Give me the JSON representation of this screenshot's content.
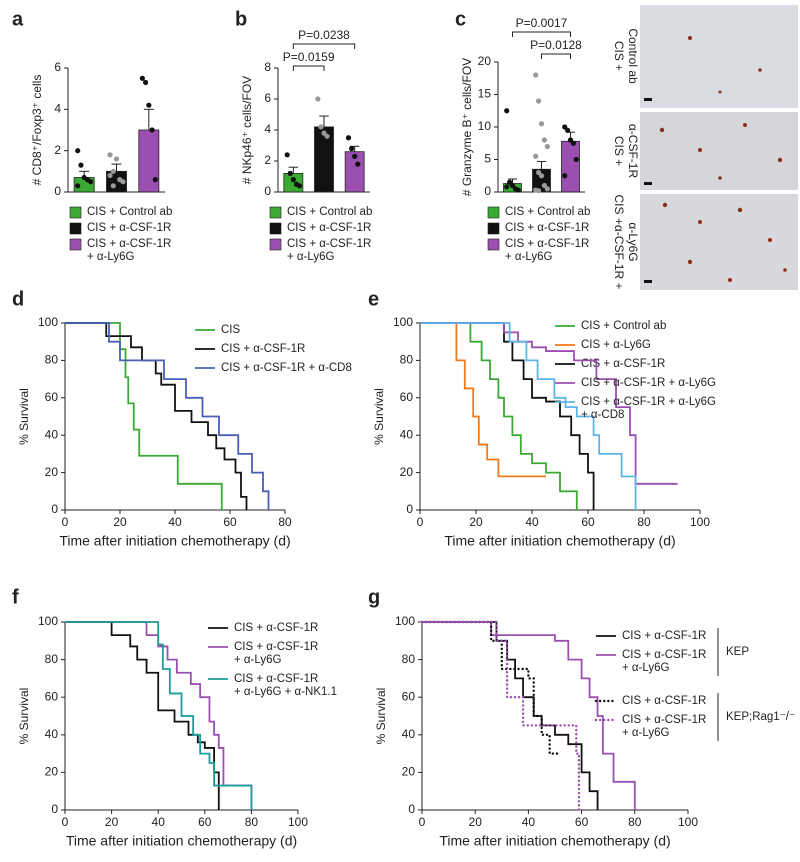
{
  "chart_data": [
    {
      "type": "bar",
      "panel": "a",
      "ylabel": "# CD8⁺/Foxp3⁺ cells",
      "ylim": [
        0,
        6
      ],
      "yticks": [
        0,
        2,
        4,
        6
      ],
      "series": [
        {
          "name": [
            "CIS + Control ab"
          ],
          "color": "#3aaa35",
          "point_color": "#111111",
          "values": [
            0.7
          ],
          "errors": [
            0.3
          ],
          "points": [
            2.0,
            1.3,
            0.7,
            0.6,
            0.5,
            0.3
          ]
        },
        {
          "name": [
            "CIS + α-CSF-1R"
          ],
          "color": "#111111",
          "point_color": "#999999",
          "values": [
            1.0
          ],
          "errors": [
            0.35
          ],
          "points": [
            1.8,
            1.0,
            1.6,
            0.6,
            0.5,
            0.8,
            0.3
          ]
        },
        {
          "name": [
            "CIS + α-CSF-1R",
            "+ α-Ly6G"
          ],
          "color": "#9b4fb0",
          "point_color": "#111111",
          "values": [
            3.0
          ],
          "errors": [
            1.0
          ],
          "points": [
            5.5,
            5.3,
            4.2,
            3.0,
            0.6
          ]
        }
      ],
      "comparisons": []
    },
    {
      "type": "bar",
      "panel": "b",
      "ylabel": "# NKp46⁺ cells/FOV",
      "ylim": [
        0,
        8
      ],
      "yticks": [
        0,
        2,
        4,
        6,
        8
      ],
      "series": [
        {
          "name": [
            "CIS + Control ab"
          ],
          "color": "#3aaa35",
          "point_color": "#111111",
          "values": [
            1.2
          ],
          "errors": [
            0.4
          ],
          "points": [
            2.4,
            1.2,
            0.8,
            0.5,
            0.4
          ]
        },
        {
          "name": [
            "CIS + α-CSF-1R"
          ],
          "color": "#111111",
          "point_color": "#999999",
          "values": [
            4.2
          ],
          "errors": [
            0.7
          ],
          "points": [
            6.0,
            4.2,
            3.8,
            3.6
          ]
        },
        {
          "name": [
            "CIS + α-CSF-1R",
            "+ α-Ly6G"
          ],
          "color": "#9b4fb0",
          "point_color": "#111111",
          "values": [
            2.6
          ],
          "errors": [
            0.35
          ],
          "points": [
            3.5,
            2.8,
            2.3,
            1.8
          ]
        }
      ],
      "comparisons": [
        {
          "label": "P=0.0159",
          "groups": [
            0,
            1
          ]
        },
        {
          "label": "P=0.0238",
          "groups": [
            0,
            2
          ]
        }
      ]
    },
    {
      "type": "bar",
      "panel": "c",
      "ylabel": "# Granzyme B⁺ cells/FOV",
      "ylim": [
        0,
        20
      ],
      "yticks": [
        0,
        5,
        10,
        15,
        20
      ],
      "series": [
        {
          "name": [
            "CIS + Control ab"
          ],
          "color": "#3aaa35",
          "point_color": "#111111",
          "values": [
            1.3
          ],
          "errors": [
            0.7
          ],
          "points": [
            12.5,
            1.5,
            1.0,
            0.5,
            0.3,
            0.8
          ]
        },
        {
          "name": [
            "CIS + α-CSF-1R"
          ],
          "color": "#111111",
          "point_color": "#999999",
          "values": [
            3.5
          ],
          "errors": [
            1.2
          ],
          "points": [
            18,
            14,
            10.5,
            8,
            7,
            5.5,
            3,
            2.5,
            1,
            0.5,
            0.3,
            0.2
          ]
        },
        {
          "name": [
            "CIS + α-CSF-1R",
            "+ α-Ly6G"
          ],
          "color": "#9b4fb0",
          "point_color": "#111111",
          "values": [
            7.8
          ],
          "errors": [
            1.4
          ],
          "points": [
            10,
            9.5,
            8,
            7.5,
            5,
            2.5
          ]
        }
      ],
      "comparisons": [
        {
          "label": "P=0.0128",
          "groups": [
            1,
            2
          ]
        },
        {
          "label": "P=0.0017",
          "groups": [
            0,
            2
          ]
        }
      ],
      "micrographs": [
        {
          "label": [
            "CIS +",
            "Control ab"
          ]
        },
        {
          "label": [
            "CIS +",
            "α-CSF-1R"
          ]
        },
        {
          "label": [
            "CIS +α-CSF-1R +",
            "α-Ly6G"
          ]
        }
      ]
    },
    {
      "type": "survival",
      "panel": "d",
      "xlabel": "Time after initiation chemotherapy (d)",
      "ylabel": "% Survival",
      "xlim": [
        0,
        80
      ],
      "xticks": [
        0,
        20,
        40,
        60,
        80
      ],
      "ylim": [
        0,
        100
      ],
      "yticks": [
        0,
        20,
        40,
        60,
        80,
        100
      ],
      "series": [
        {
          "name": [
            "CIS"
          ],
          "color": "#3aaa35",
          "x": [
            0,
            20,
            22,
            23,
            25,
            27,
            41,
            57
          ],
          "values": [
            100,
            86,
            71,
            57,
            43,
            29,
            14,
            0
          ]
        },
        {
          "name": [
            "CIS + α-CSF-1R"
          ],
          "color": "#111111",
          "x": [
            0,
            15,
            24,
            28,
            33,
            35,
            40,
            46,
            52,
            55,
            58,
            62,
            64,
            66
          ],
          "values": [
            100,
            93,
            87,
            80,
            73,
            67,
            53,
            47,
            40,
            33,
            27,
            20,
            7,
            0
          ]
        },
        {
          "name": [
            "CIS + α-CSF-1R + α-CD8"
          ],
          "color": "#4a5fb5",
          "x": [
            0,
            16,
            20,
            36,
            44,
            50,
            56,
            63,
            68,
            72,
            74
          ],
          "values": [
            100,
            90,
            80,
            70,
            60,
            50,
            40,
            30,
            20,
            10,
            0
          ]
        }
      ]
    },
    {
      "type": "survival",
      "panel": "e",
      "xlabel": "Time after initiation chemotherapy (d)",
      "ylabel": "% Survival",
      "xlim": [
        0,
        100
      ],
      "xticks": [
        0,
        20,
        40,
        60,
        80,
        100
      ],
      "ylim": [
        0,
        100
      ],
      "yticks": [
        0,
        20,
        40,
        60,
        80,
        100
      ],
      "series": [
        {
          "name": [
            "CIS + Control ab"
          ],
          "color": "#3aaa35",
          "x": [
            0,
            18,
            22,
            25,
            28,
            30,
            33,
            36,
            40,
            45,
            50,
            56
          ],
          "values": [
            100,
            90,
            80,
            70,
            60,
            50,
            40,
            30,
            25,
            20,
            10,
            0
          ]
        },
        {
          "name": [
            "CIS + α-Ly6G"
          ],
          "color": "#f07a1a",
          "x": [
            0,
            13,
            16,
            19,
            21,
            24,
            28,
            45
          ],
          "values": [
            100,
            80,
            65,
            50,
            35,
            27,
            18,
            18
          ]
        },
        {
          "name": [
            "CIS + α-CSF-1R"
          ],
          "color": "#111111",
          "x": [
            0,
            30,
            33,
            37,
            40,
            45,
            50,
            54,
            57,
            60,
            62
          ],
          "values": [
            100,
            90,
            80,
            70,
            60,
            58,
            50,
            40,
            30,
            20,
            0
          ]
        },
        {
          "name": [
            "CIS + α-CSF-1R + α-Ly6G"
          ],
          "color": "#9b4fb0",
          "x": [
            0,
            30,
            35,
            40,
            45,
            55,
            63,
            70,
            75,
            77,
            92
          ],
          "values": [
            100,
            95,
            90,
            87,
            85,
            80,
            70,
            55,
            40,
            14,
            14
          ]
        },
        {
          "name": [
            "CIS + α-CSF-1R + α-Ly6G",
            "+ α-CD8"
          ],
          "color": "#5fb4e6",
          "x": [
            0,
            32,
            38,
            42,
            48,
            52,
            56,
            62,
            64,
            72,
            77
          ],
          "values": [
            100,
            90,
            80,
            70,
            60,
            55,
            50,
            40,
            30,
            18,
            0
          ]
        }
      ]
    },
    {
      "type": "survival",
      "panel": "f",
      "xlabel": "Time after initiation chemotherapy (d)",
      "ylabel": "% Survival",
      "xlim": [
        0,
        100
      ],
      "xticks": [
        0,
        20,
        40,
        60,
        80,
        100
      ],
      "ylim": [
        0,
        100
      ],
      "yticks": [
        0,
        20,
        40,
        60,
        80,
        100
      ],
      "series": [
        {
          "name": [
            "CIS + α-CSF-1R"
          ],
          "color": "#111111",
          "x": [
            0,
            20,
            28,
            31,
            35,
            40,
            47,
            53,
            57,
            60,
            64,
            66
          ],
          "values": [
            100,
            93,
            87,
            80,
            73,
            53,
            47,
            40,
            36,
            33,
            20,
            0
          ]
        },
        {
          "name": [
            "CIS + α-CSF-1R",
            "+ α-Ly6G"
          ],
          "color": "#9b4fb0",
          "x": [
            0,
            35,
            40,
            44,
            48,
            54,
            58,
            62,
            64,
            66,
            68,
            80
          ],
          "values": [
            100,
            93,
            87,
            80,
            73,
            67,
            60,
            47,
            40,
            33,
            13,
            0
          ]
        },
        {
          "name": [
            "CIS + α-CSF-1R",
            "+ α-Ly6G + α-NK1.1"
          ],
          "color": "#1f9b9b",
          "x": [
            0,
            40,
            42,
            45,
            50,
            55,
            58,
            62,
            64,
            80
          ],
          "values": [
            100,
            88,
            75,
            62,
            50,
            40,
            30,
            25,
            13,
            0
          ]
        }
      ]
    },
    {
      "type": "survival",
      "panel": "g",
      "xlabel": "Time after initiation chemotherapy (d)",
      "ylabel": "% Survival",
      "xlim": [
        0,
        100
      ],
      "xticks": [
        0,
        20,
        40,
        60,
        80,
        100
      ],
      "ylim": [
        0,
        100
      ],
      "yticks": [
        0,
        20,
        40,
        60,
        80,
        100
      ],
      "series": [
        {
          "name": [
            "CIS + α-CSF-1R"
          ],
          "color": "#111111",
          "dotted": false,
          "x": [
            0,
            28,
            32,
            35,
            38,
            42,
            45,
            50,
            55,
            60,
            63,
            66
          ],
          "values": [
            100,
            90,
            80,
            70,
            60,
            50,
            45,
            40,
            35,
            20,
            10,
            0
          ]
        },
        {
          "name": [
            "CIS + α-CSF-1R",
            "+ α-Ly6G"
          ],
          "color": "#9b4fb0",
          "dotted": false,
          "x": [
            0,
            26,
            35,
            50,
            55,
            60,
            63,
            66,
            68,
            72,
            80
          ],
          "values": [
            100,
            93,
            93,
            90,
            80,
            70,
            60,
            50,
            30,
            15,
            0
          ]
        },
        {
          "name": [
            "CIS + α-CSF-1R"
          ],
          "color": "#111111",
          "dotted": true,
          "x": [
            0,
            26,
            30,
            35,
            40,
            42,
            45,
            48,
            52
          ],
          "values": [
            100,
            90,
            75,
            75,
            70,
            50,
            40,
            30,
            30
          ]
        },
        {
          "name": [
            "CIS + α-CSF-1R",
            "+ α-Ly6G"
          ],
          "color": "#9b4fb0",
          "dotted": true,
          "x": [
            0,
            28,
            32,
            38,
            45,
            55,
            58,
            59
          ],
          "values": [
            100,
            90,
            60,
            45,
            45,
            45,
            30,
            0
          ]
        }
      ],
      "groups": [
        {
          "label": "KEP",
          "series": [
            0,
            1
          ]
        },
        {
          "label": "KEP;Rag1⁻/⁻",
          "series": [
            2,
            3
          ]
        }
      ]
    }
  ]
}
